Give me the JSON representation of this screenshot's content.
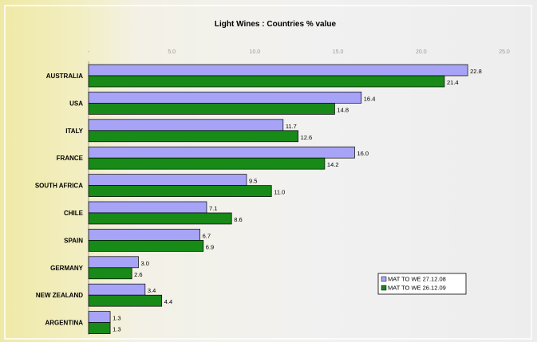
{
  "chart_data": {
    "type": "bar",
    "orientation": "horizontal",
    "title": "Light Wines : Countries % value",
    "xlabel": "",
    "ylabel": "",
    "xlim": [
      0,
      25
    ],
    "x_ticks": [
      "-",
      "5.0",
      "10.0",
      "15.0",
      "20.0",
      "25.0"
    ],
    "categories": [
      "AUSTRALIA",
      "USA",
      "ITALY",
      "FRANCE",
      "SOUTH AFRICA",
      "CHILE",
      "SPAIN",
      "GERMANY",
      "NEW ZEALAND",
      "ARGENTINA"
    ],
    "series": [
      {
        "name": "MAT TO WE 27.12.08",
        "color": "#a7a4f7",
        "values": [
          22.8,
          16.4,
          11.7,
          16.0,
          9.5,
          7.1,
          6.7,
          3.0,
          3.4,
          1.3
        ],
        "labels": [
          "22.8",
          "16.4",
          "11.7",
          "16.0",
          "9.5",
          "7.1",
          "6.7",
          "3.0",
          "3.4",
          "1.3"
        ]
      },
      {
        "name": "MAT TO WE 26.12.09",
        "color": "#178a17",
        "values": [
          21.4,
          14.8,
          12.6,
          14.2,
          11.0,
          8.6,
          6.9,
          2.6,
          4.4,
          1.3
        ],
        "labels": [
          "21.4",
          "14.8",
          "12.6",
          "14.2",
          "11.0",
          "8.6",
          "6.9",
          "2.6",
          "4.4",
          "1.3"
        ]
      }
    ],
    "legend": "bottom-right",
    "grid": false,
    "data_labels": true
  }
}
